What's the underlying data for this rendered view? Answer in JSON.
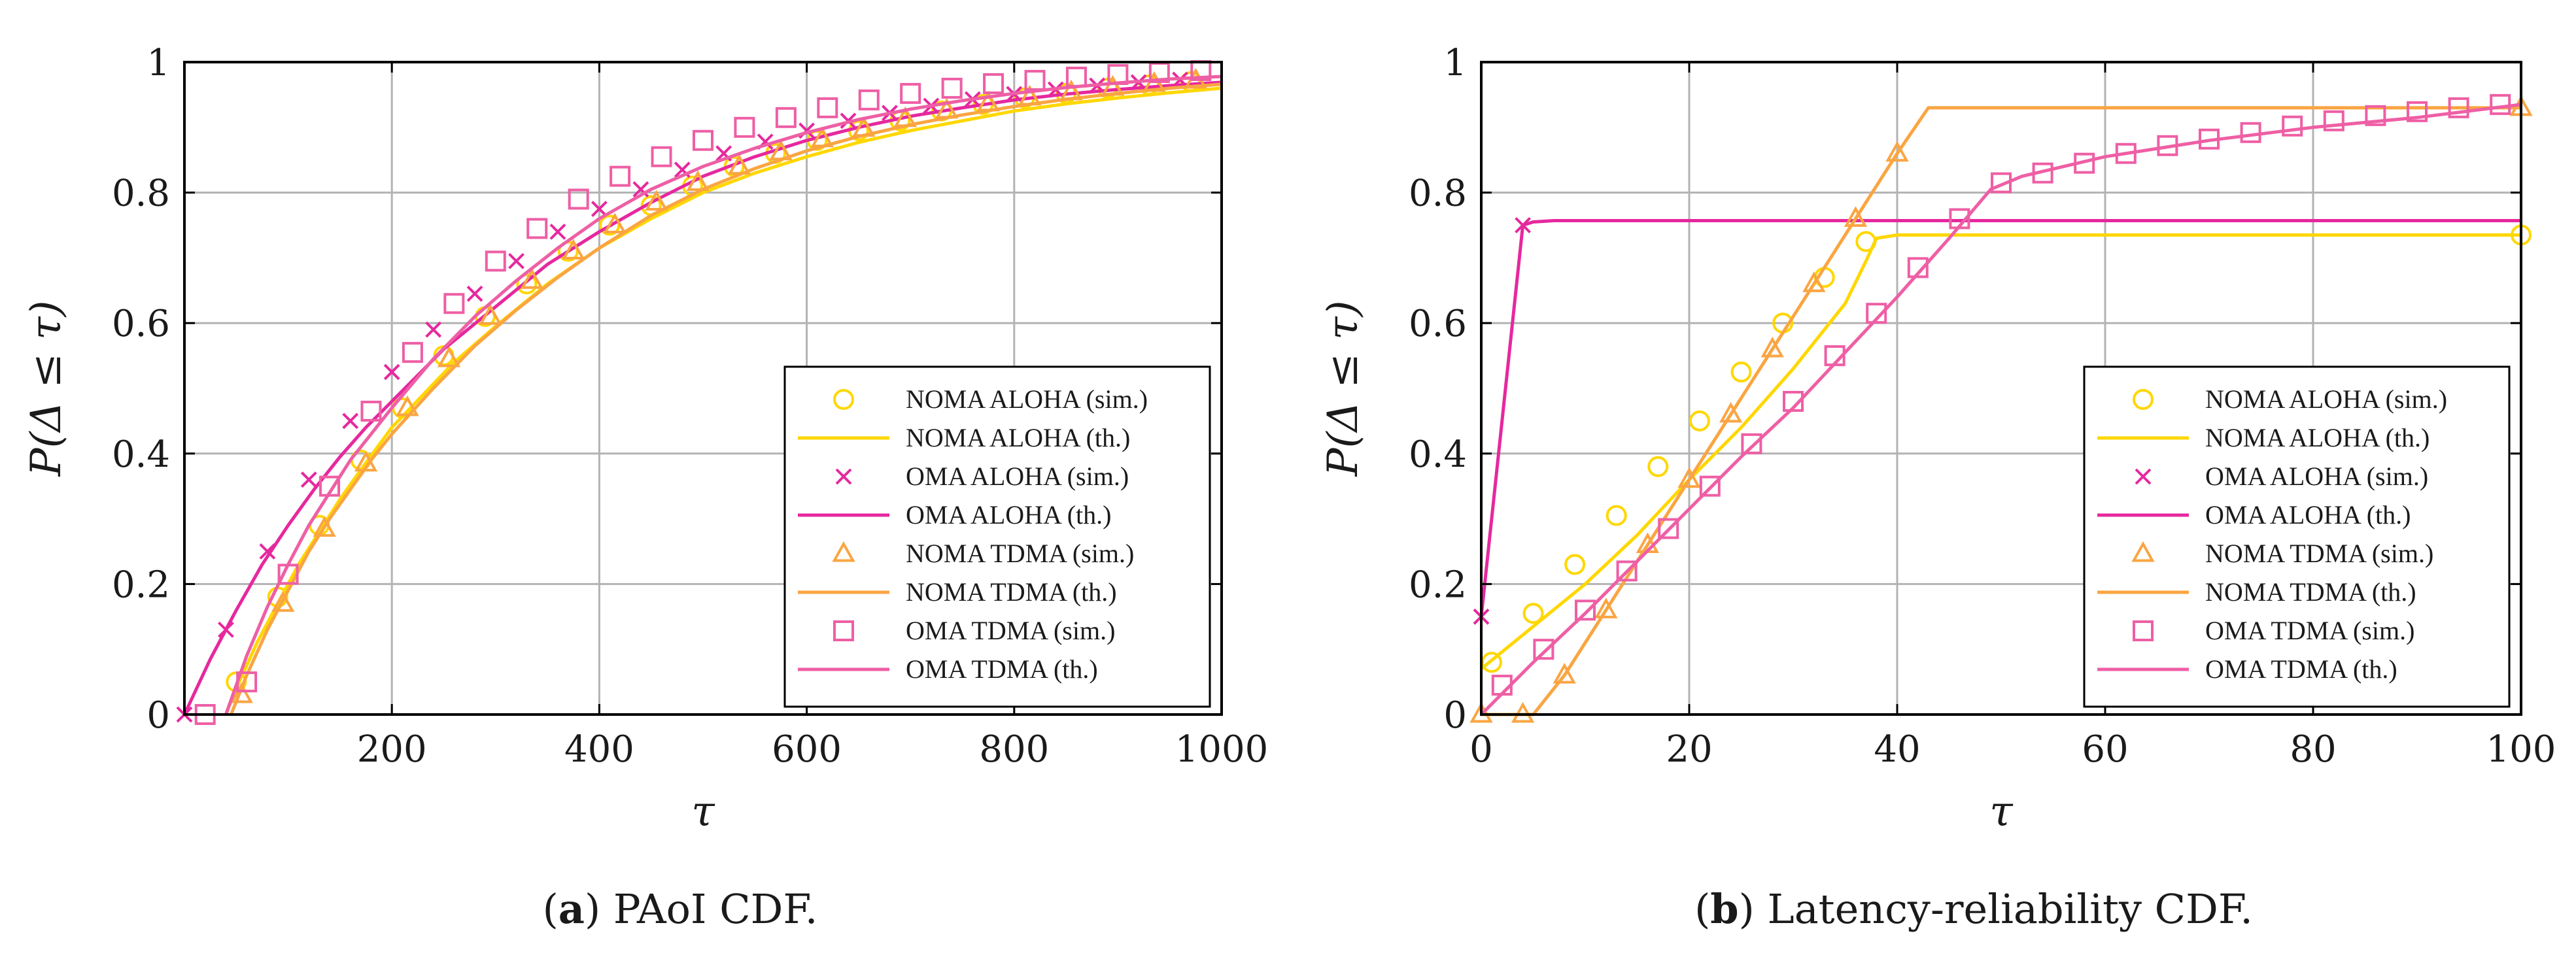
{
  "colors": {
    "noma_aloha": "#FFD700",
    "oma_aloha": "#E6289E",
    "noma_tdma": "#FAA542",
    "oma_tdma": "#EE5FA5",
    "grid": "#b3b3b3",
    "axis": "#000000"
  },
  "legend_labels": [
    "NOMA ALOHA (sim.)",
    "NOMA ALOHA (th.)",
    "OMA ALOHA (sim.)",
    "OMA ALOHA (th.)",
    "NOMA TDMA (sim.)",
    "NOMA TDMA (th.)",
    "OMA TDMA (sim.)",
    "OMA TDMA (th.)"
  ],
  "chart_data": [
    {
      "type": "line",
      "caption_label": "a",
      "caption_text": "PAoI CDF.",
      "xlabel": "τ",
      "ylabel": "P(Δ ≤ τ)",
      "xlim": [
        0,
        1000
      ],
      "ylim": [
        0,
        1
      ],
      "xticks": [
        200,
        400,
        600,
        800,
        1000
      ],
      "yticks": [
        0,
        0.2,
        0.4,
        0.6,
        0.8,
        1
      ],
      "ytick_labels": [
        "0",
        "0.2",
        "0.4",
        "0.6",
        "0.8",
        "1"
      ],
      "grid": true,
      "legend_position": "bottom-right",
      "series": [
        {
          "name": "NOMA ALOHA (sim.)",
          "style": "circle",
          "color": "noma_aloha",
          "x": [
            50,
            90,
            130,
            170,
            210,
            250,
            290,
            330,
            370,
            410,
            450,
            490,
            530,
            570,
            610,
            650,
            690,
            730,
            770,
            810,
            850,
            890,
            930,
            970
          ],
          "y": [
            0.05,
            0.18,
            0.29,
            0.39,
            0.47,
            0.55,
            0.61,
            0.66,
            0.71,
            0.75,
            0.78,
            0.81,
            0.84,
            0.86,
            0.88,
            0.895,
            0.91,
            0.925,
            0.935,
            0.945,
            0.952,
            0.96,
            0.965,
            0.97
          ]
        },
        {
          "name": "NOMA ALOHA (th.)",
          "style": "line",
          "color": "noma_aloha",
          "x": [
            40,
            50,
            70,
            90,
            110,
            130,
            150,
            170,
            200,
            230,
            260,
            300,
            350,
            400,
            450,
            500,
            550,
            600,
            650,
            700,
            750,
            800,
            850,
            900,
            950,
            1000
          ],
          "y": [
            0,
            0.04,
            0.11,
            0.17,
            0.23,
            0.28,
            0.33,
            0.375,
            0.44,
            0.49,
            0.54,
            0.595,
            0.66,
            0.715,
            0.76,
            0.8,
            0.83,
            0.855,
            0.877,
            0.895,
            0.91,
            0.925,
            0.936,
            0.945,
            0.953,
            0.96
          ]
        },
        {
          "name": "OMA ALOHA (sim.)",
          "style": "cross",
          "color": "oma_aloha",
          "x": [
            0,
            40,
            80,
            120,
            160,
            200,
            240,
            280,
            320,
            360,
            400,
            440,
            480,
            520,
            560,
            600,
            640,
            680,
            720,
            760,
            800,
            840,
            880,
            920,
            960
          ],
          "y": [
            0,
            0.13,
            0.25,
            0.36,
            0.45,
            0.525,
            0.59,
            0.645,
            0.695,
            0.74,
            0.775,
            0.805,
            0.835,
            0.86,
            0.878,
            0.895,
            0.91,
            0.922,
            0.933,
            0.943,
            0.951,
            0.958,
            0.964,
            0.969,
            0.973
          ]
        },
        {
          "name": "OMA ALOHA (th.)",
          "style": "line",
          "color": "oma_aloha",
          "x": [
            0,
            25,
            50,
            75,
            100,
            125,
            150,
            175,
            200,
            250,
            300,
            350,
            400,
            450,
            500,
            550,
            600,
            650,
            700,
            750,
            800,
            850,
            900,
            950,
            1000
          ],
          "y": [
            0,
            0.085,
            0.16,
            0.23,
            0.29,
            0.345,
            0.395,
            0.44,
            0.48,
            0.56,
            0.625,
            0.69,
            0.74,
            0.785,
            0.825,
            0.855,
            0.88,
            0.9,
            0.917,
            0.93,
            0.942,
            0.951,
            0.958,
            0.964,
            0.969
          ]
        },
        {
          "name": "NOMA TDMA (sim.)",
          "style": "triangle",
          "color": "noma_tdma",
          "x": [
            55,
            95,
            135,
            175,
            215,
            255,
            295,
            335,
            375,
            415,
            455,
            495,
            535,
            575,
            615,
            655,
            695,
            735,
            775,
            815,
            855,
            895,
            935,
            975
          ],
          "y": [
            0.03,
            0.17,
            0.285,
            0.385,
            0.47,
            0.545,
            0.61,
            0.665,
            0.71,
            0.75,
            0.785,
            0.815,
            0.84,
            0.862,
            0.882,
            0.898,
            0.913,
            0.926,
            0.937,
            0.946,
            0.954,
            0.961,
            0.967,
            0.972
          ]
        },
        {
          "name": "NOMA TDMA (th.)",
          "style": "line",
          "color": "noma_tdma",
          "x": [
            45,
            60,
            80,
            100,
            120,
            140,
            160,
            180,
            200,
            240,
            280,
            320,
            360,
            400,
            450,
            500,
            550,
            600,
            650,
            700,
            750,
            800,
            850,
            900,
            950,
            1000
          ],
          "y": [
            0,
            0.06,
            0.13,
            0.19,
            0.25,
            0.3,
            0.345,
            0.39,
            0.43,
            0.5,
            0.565,
            0.62,
            0.67,
            0.715,
            0.765,
            0.805,
            0.837,
            0.864,
            0.886,
            0.904,
            0.919,
            0.932,
            0.943,
            0.952,
            0.96,
            0.966
          ]
        },
        {
          "name": "OMA TDMA (sim.)",
          "style": "square",
          "color": "oma_tdma",
          "x": [
            20,
            60,
            100,
            140,
            180,
            220,
            260,
            300,
            340,
            380,
            420,
            460,
            500,
            540,
            580,
            620,
            660,
            700,
            740,
            780,
            820,
            860,
            900,
            940,
            980
          ],
          "y": [
            0,
            0.05,
            0.215,
            0.35,
            0.465,
            0.555,
            0.63,
            0.695,
            0.745,
            0.79,
            0.825,
            0.855,
            0.88,
            0.9,
            0.915,
            0.93,
            0.942,
            0.952,
            0.96,
            0.967,
            0.972,
            0.977,
            0.981,
            0.984,
            0.987
          ]
        },
        {
          "name": "OMA TDMA (th.)",
          "style": "line",
          "color": "oma_tdma",
          "x": [
            40,
            60,
            80,
            100,
            120,
            140,
            160,
            180,
            200,
            240,
            280,
            320,
            360,
            400,
            450,
            500,
            550,
            600,
            650,
            700,
            750,
            800,
            850,
            900,
            950,
            1000
          ],
          "y": [
            0,
            0.09,
            0.165,
            0.23,
            0.29,
            0.34,
            0.39,
            0.43,
            0.47,
            0.545,
            0.61,
            0.665,
            0.715,
            0.76,
            0.805,
            0.84,
            0.868,
            0.892,
            0.912,
            0.928,
            0.941,
            0.952,
            0.961,
            0.968,
            0.974,
            0.978
          ]
        }
      ]
    },
    {
      "type": "line",
      "caption_label": "b",
      "caption_text": "Latency-reliability CDF.",
      "xlabel": "τ",
      "ylabel": "P(Δ ≤ τ)",
      "xlim": [
        0,
        100
      ],
      "ylim": [
        0,
        1
      ],
      "xticks": [
        0,
        20,
        40,
        60,
        80,
        100
      ],
      "yticks": [
        0,
        0.2,
        0.4,
        0.6,
        0.8,
        1
      ],
      "ytick_labels": [
        "0",
        "0.2",
        "0.4",
        "0.6",
        "0.8",
        "1"
      ],
      "grid": true,
      "legend_position": "bottom-right",
      "series": [
        {
          "name": "NOMA ALOHA (sim.)",
          "style": "circle",
          "color": "noma_aloha",
          "x": [
            1,
            5,
            9,
            13,
            17,
            21,
            25,
            29,
            33,
            37,
            100
          ],
          "y": [
            0.08,
            0.155,
            0.23,
            0.305,
            0.38,
            0.45,
            0.525,
            0.6,
            0.67,
            0.725,
            0.735
          ]
        },
        {
          "name": "NOMA ALOHA (th.)",
          "style": "line",
          "color": "noma_aloha",
          "x": [
            0,
            5,
            10,
            15,
            20,
            25,
            30,
            35,
            37,
            38,
            40,
            60,
            100
          ],
          "y": [
            0.07,
            0.135,
            0.2,
            0.275,
            0.36,
            0.44,
            0.53,
            0.63,
            0.695,
            0.73,
            0.735,
            0.735,
            0.735
          ]
        },
        {
          "name": "OMA ALOHA (sim.)",
          "style": "cross",
          "color": "oma_aloha",
          "x": [
            0,
            4
          ],
          "y": [
            0.15,
            0.75
          ]
        },
        {
          "name": "OMA ALOHA (th.)",
          "style": "line",
          "color": "oma_aloha",
          "x": [
            0,
            4,
            5,
            7,
            10,
            20,
            40,
            60,
            80,
            100
          ],
          "y": [
            0.15,
            0.75,
            0.755,
            0.757,
            0.757,
            0.757,
            0.757,
            0.757,
            0.757,
            0.757
          ]
        },
        {
          "name": "NOMA TDMA (sim.)",
          "style": "triangle",
          "color": "noma_tdma",
          "x": [
            0,
            4,
            8,
            12,
            16,
            20,
            24,
            28,
            32,
            36,
            40,
            100
          ],
          "y": [
            0,
            0,
            0.06,
            0.16,
            0.26,
            0.36,
            0.46,
            0.56,
            0.66,
            0.76,
            0.86,
            0.93
          ]
        },
        {
          "name": "NOMA TDMA (th.)",
          "style": "line",
          "color": "noma_tdma",
          "x": [
            0,
            5,
            8,
            12,
            16,
            20,
            24,
            28,
            32,
            36,
            40,
            43,
            60,
            80,
            100
          ],
          "y": [
            0,
            0,
            0.06,
            0.16,
            0.26,
            0.36,
            0.46,
            0.56,
            0.66,
            0.76,
            0.86,
            0.93,
            0.93,
            0.93,
            0.93
          ]
        },
        {
          "name": "OMA TDMA (sim.)",
          "style": "square",
          "color": "oma_tdma",
          "x": [
            2,
            6,
            10,
            14,
            18,
            22,
            26,
            30,
            34,
            38,
            42,
            46,
            50,
            54,
            58,
            62,
            66,
            70,
            74,
            78,
            82,
            86,
            90,
            94,
            98
          ],
          "y": [
            0.045,
            0.1,
            0.16,
            0.22,
            0.285,
            0.35,
            0.415,
            0.48,
            0.55,
            0.615,
            0.685,
            0.76,
            0.815,
            0.83,
            0.845,
            0.86,
            0.872,
            0.882,
            0.892,
            0.902,
            0.91,
            0.918,
            0.924,
            0.93,
            0.935
          ]
        },
        {
          "name": "OMA TDMA (th.)",
          "style": "line",
          "color": "oma_tdma",
          "x": [
            0,
            5,
            10,
            15,
            20,
            25,
            30,
            35,
            40,
            45,
            49,
            52,
            56,
            60,
            70,
            80,
            90,
            100
          ],
          "y": [
            0,
            0.08,
            0.155,
            0.235,
            0.315,
            0.395,
            0.47,
            0.555,
            0.64,
            0.73,
            0.805,
            0.825,
            0.84,
            0.855,
            0.88,
            0.9,
            0.915,
            0.935
          ]
        }
      ]
    }
  ]
}
